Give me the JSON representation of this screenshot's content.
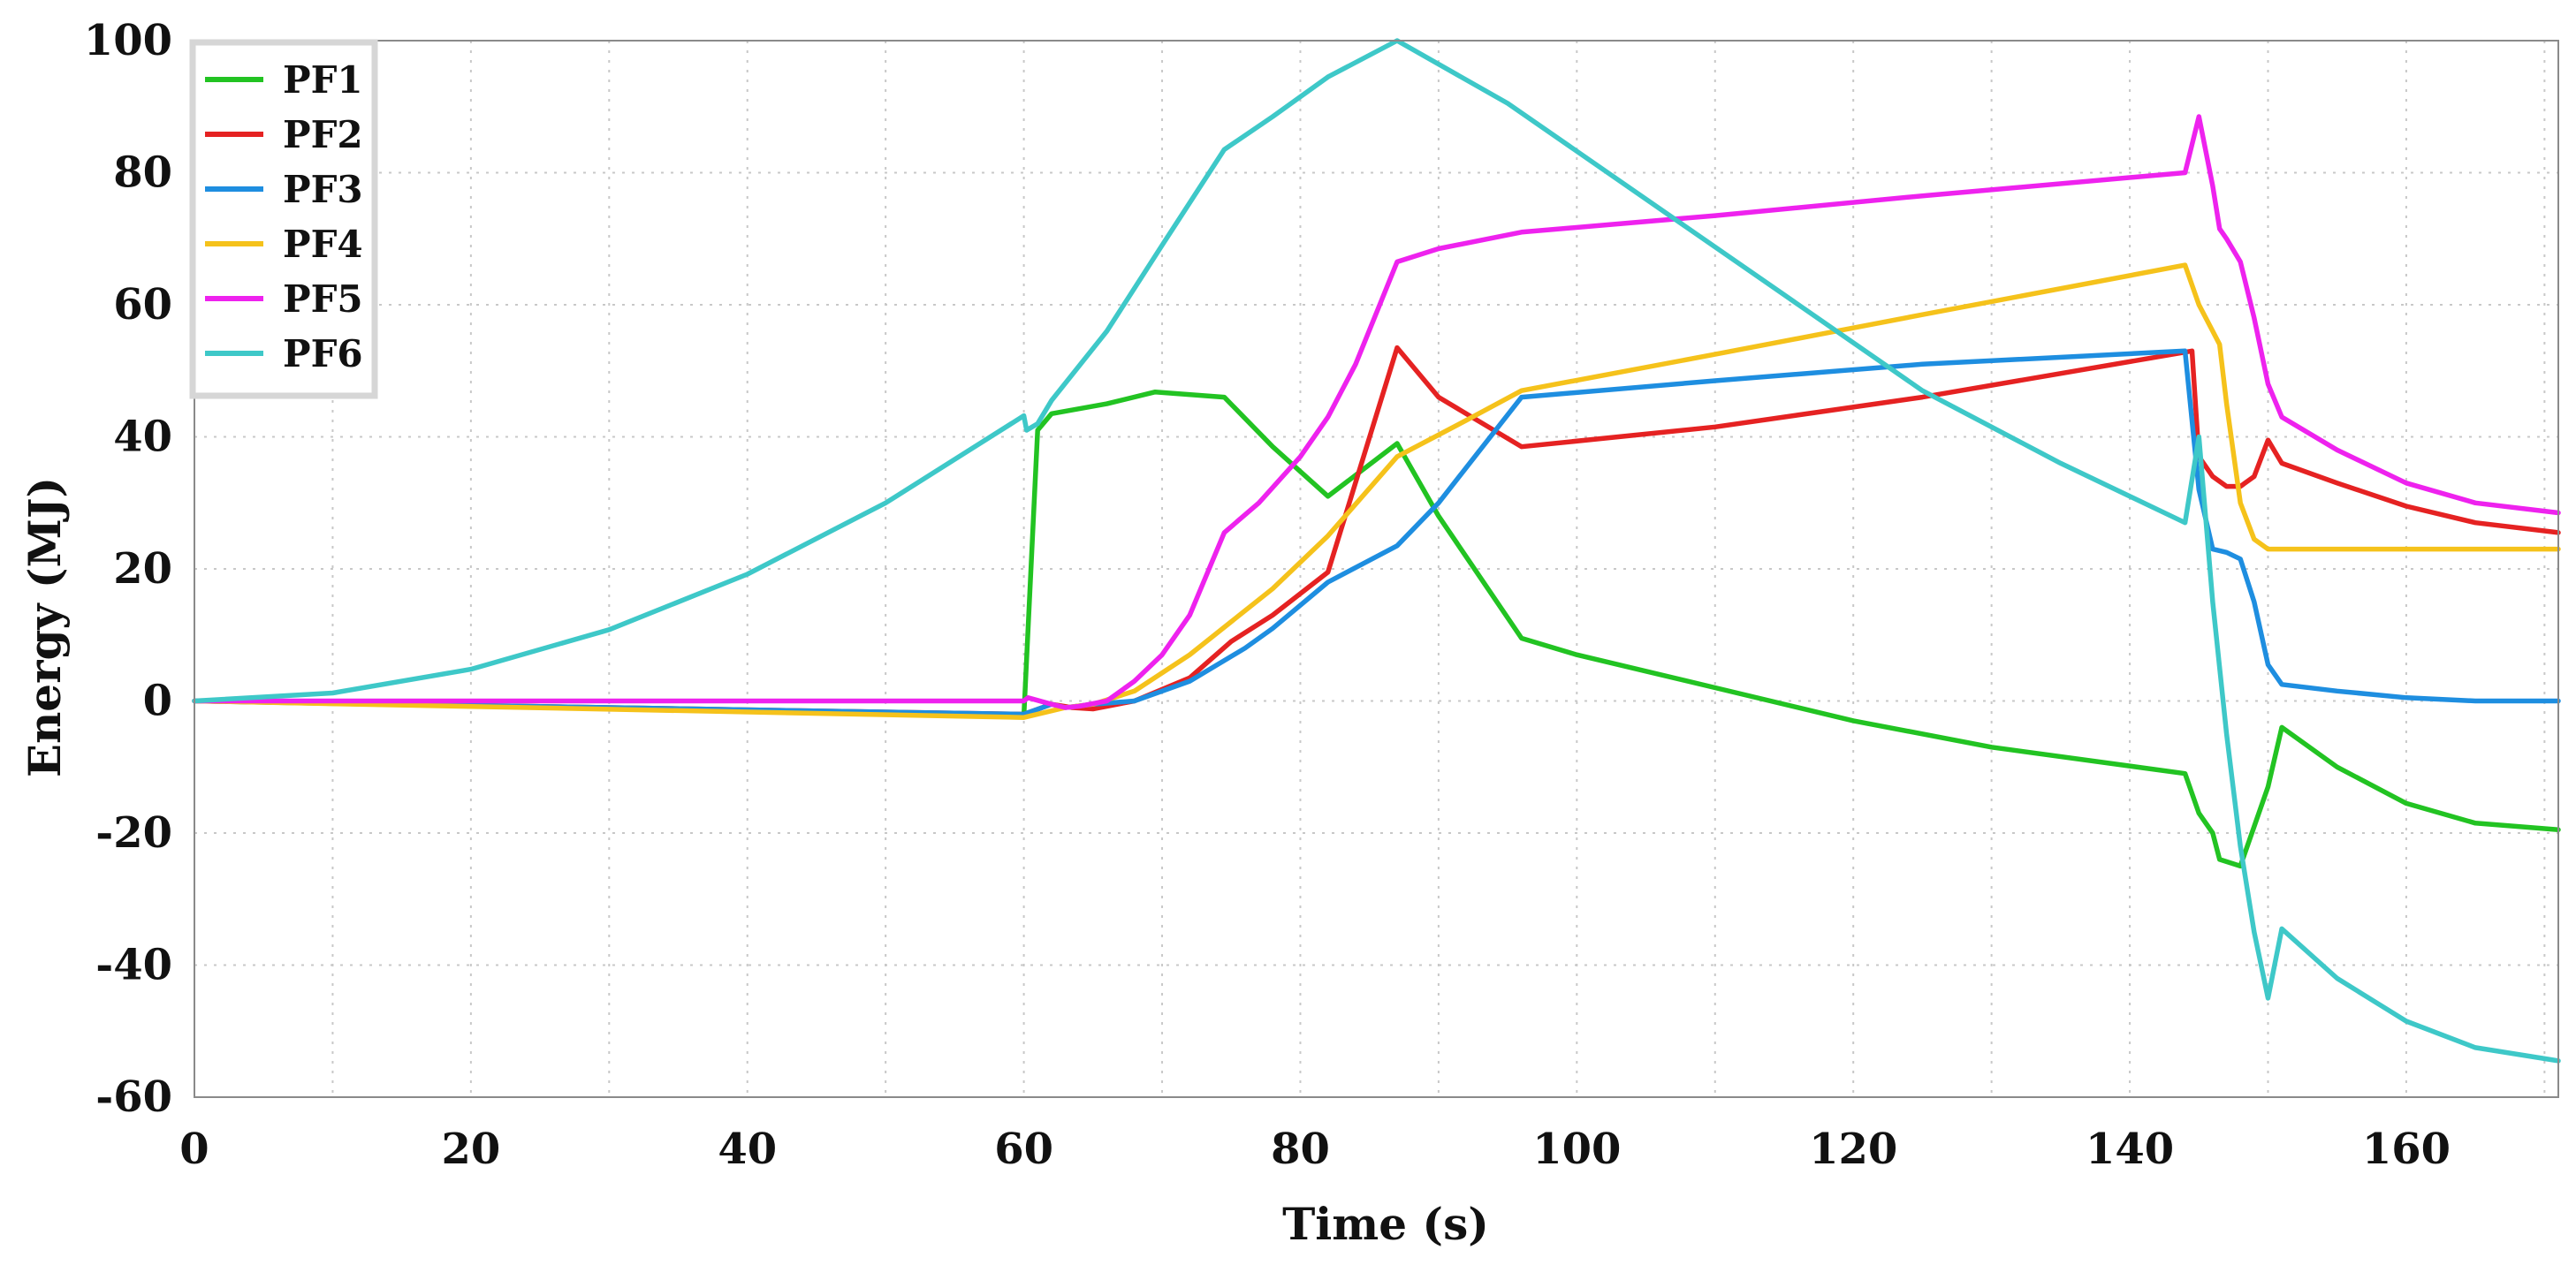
{
  "chart_data": {
    "type": "line",
    "title": "",
    "xlabel": "Time (s)",
    "ylabel": "Energy (MJ)",
    "xlim": [
      0,
      171
    ],
    "ylim": [
      -60,
      100
    ],
    "xticks": [
      0,
      20,
      40,
      60,
      80,
      100,
      120,
      140,
      160
    ],
    "yticks": [
      100,
      80,
      60,
      40,
      20,
      0,
      -20,
      -40,
      -60
    ],
    "xtick_labels": [
      "0",
      "20",
      "40",
      "60",
      "80",
      "100",
      "120",
      "140",
      "160"
    ],
    "ytick_labels": [
      "100",
      "80",
      "60",
      "40",
      "20",
      "0",
      "-20",
      "-40",
      "-60"
    ],
    "grid": true,
    "legend_position": "top-left",
    "series": [
      {
        "name": "PF1",
        "color": "#22c322",
        "points": [
          [
            0,
            0
          ],
          [
            60,
            -2.3
          ],
          [
            61,
            41
          ],
          [
            62,
            43.5
          ],
          [
            66,
            45
          ],
          [
            69.5,
            46.8
          ],
          [
            74.5,
            46
          ],
          [
            78,
            38.5
          ],
          [
            82,
            31
          ],
          [
            87,
            39
          ],
          [
            90,
            28
          ],
          [
            96,
            9.5
          ],
          [
            100,
            7
          ],
          [
            110,
            2
          ],
          [
            120,
            -3
          ],
          [
            130,
            -7
          ],
          [
            144,
            -11
          ],
          [
            145,
            -17
          ],
          [
            146,
            -20
          ],
          [
            146.5,
            -24
          ],
          [
            148,
            -25
          ],
          [
            150,
            -13
          ],
          [
            151,
            -4
          ],
          [
            155,
            -10
          ],
          [
            160,
            -15.5
          ],
          [
            165,
            -18.5
          ],
          [
            171,
            -19.5
          ]
        ]
      },
      {
        "name": "PF2",
        "color": "#e52222",
        "points": [
          [
            0,
            0
          ],
          [
            60,
            -2
          ],
          [
            62,
            -0.5
          ],
          [
            63.5,
            -1
          ],
          [
            65,
            -1.2
          ],
          [
            68,
            0
          ],
          [
            72,
            3.5
          ],
          [
            75,
            9
          ],
          [
            78,
            13
          ],
          [
            82,
            19.5
          ],
          [
            87,
            53.5
          ],
          [
            90,
            46
          ],
          [
            96,
            38.5
          ],
          [
            110,
            41.5
          ],
          [
            125,
            46
          ],
          [
            144.5,
            53
          ],
          [
            145,
            37
          ],
          [
            146,
            34
          ],
          [
            147,
            32.5
          ],
          [
            148,
            32.5
          ],
          [
            149,
            34
          ],
          [
            150,
            39.5
          ],
          [
            151,
            36
          ],
          [
            155,
            33
          ],
          [
            160,
            29.5
          ],
          [
            165,
            27
          ],
          [
            171,
            25.5
          ]
        ]
      },
      {
        "name": "PF3",
        "color": "#1e8ee0",
        "points": [
          [
            0,
            0
          ],
          [
            60,
            -2
          ],
          [
            62,
            -0.5
          ],
          [
            63,
            -1
          ],
          [
            65,
            -0.5
          ],
          [
            68,
            0
          ],
          [
            72,
            3
          ],
          [
            76,
            8
          ],
          [
            78,
            11
          ],
          [
            82,
            18
          ],
          [
            87,
            23.5
          ],
          [
            90,
            30
          ],
          [
            93,
            38
          ],
          [
            96,
            46
          ],
          [
            110,
            48.5
          ],
          [
            125,
            51
          ],
          [
            144,
            53
          ],
          [
            145,
            32
          ],
          [
            146,
            23
          ],
          [
            147,
            22.5
          ],
          [
            148,
            21.5
          ],
          [
            149,
            15
          ],
          [
            150,
            5.5
          ],
          [
            151,
            2.5
          ],
          [
            155,
            1.5
          ],
          [
            160,
            0.5
          ],
          [
            165,
            0
          ],
          [
            171,
            0
          ]
        ]
      },
      {
        "name": "PF4",
        "color": "#f5c21b",
        "points": [
          [
            0,
            0
          ],
          [
            60,
            -2.5
          ],
          [
            62,
            -1.5
          ],
          [
            63,
            -1
          ],
          [
            65,
            -0.5
          ],
          [
            68,
            1.5
          ],
          [
            72,
            7
          ],
          [
            75,
            12
          ],
          [
            78,
            17
          ],
          [
            82,
            25
          ],
          [
            87,
            37
          ],
          [
            92,
            42.5
          ],
          [
            96,
            47
          ],
          [
            110,
            52.5
          ],
          [
            125,
            58.5
          ],
          [
            144,
            66
          ],
          [
            145,
            60
          ],
          [
            146,
            56
          ],
          [
            146.5,
            54
          ],
          [
            147,
            45
          ],
          [
            148,
            30
          ],
          [
            149,
            24.5
          ],
          [
            150,
            23
          ],
          [
            155,
            23
          ],
          [
            160,
            23
          ],
          [
            165,
            23
          ],
          [
            171,
            23
          ]
        ]
      },
      {
        "name": "PF5",
        "color": "#ee22ee",
        "points": [
          [
            0,
            0
          ],
          [
            60,
            0
          ],
          [
            60.3,
            0.5
          ],
          [
            62,
            -0.5
          ],
          [
            63,
            -1
          ],
          [
            64,
            -0.8
          ],
          [
            66,
            0
          ],
          [
            68,
            3
          ],
          [
            70,
            7
          ],
          [
            72,
            13
          ],
          [
            74.5,
            25.5
          ],
          [
            77,
            30
          ],
          [
            80,
            37
          ],
          [
            82,
            43
          ],
          [
            84,
            51
          ],
          [
            87,
            66.5
          ],
          [
            90,
            68.5
          ],
          [
            96,
            71
          ],
          [
            110,
            73.5
          ],
          [
            125,
            76.5
          ],
          [
            144,
            80
          ],
          [
            145,
            88.5
          ],
          [
            146,
            78
          ],
          [
            146.5,
            71.5
          ],
          [
            147,
            70
          ],
          [
            148,
            66.5
          ],
          [
            149,
            58
          ],
          [
            150,
            48
          ],
          [
            151,
            43
          ],
          [
            155,
            38
          ],
          [
            160,
            33
          ],
          [
            165,
            30
          ],
          [
            171,
            28.5
          ]
        ]
      },
      {
        "name": "PF6",
        "color": "#3ec8c8",
        "points": [
          [
            0,
            0
          ],
          [
            10,
            1.2
          ],
          [
            20,
            4.8
          ],
          [
            30,
            10.8
          ],
          [
            40,
            19.2
          ],
          [
            50,
            30
          ],
          [
            60,
            43.2
          ],
          [
            60.2,
            41
          ],
          [
            61,
            42
          ],
          [
            62,
            45.5
          ],
          [
            66,
            56
          ],
          [
            70,
            69
          ],
          [
            74.5,
            83.5
          ],
          [
            78,
            88.5
          ],
          [
            82,
            94.5
          ],
          [
            87,
            100
          ],
          [
            95,
            90.5
          ],
          [
            105,
            76
          ],
          [
            115,
            61.5
          ],
          [
            125,
            47
          ],
          [
            135,
            36
          ],
          [
            144,
            27
          ],
          [
            145,
            40
          ],
          [
            146,
            15
          ],
          [
            147,
            -5
          ],
          [
            148,
            -22
          ],
          [
            149,
            -35
          ],
          [
            150,
            -45
          ],
          [
            151,
            -34.5
          ],
          [
            155,
            -42
          ],
          [
            160,
            -48.5
          ],
          [
            165,
            -52.5
          ],
          [
            171,
            -54.5
          ]
        ]
      }
    ]
  }
}
